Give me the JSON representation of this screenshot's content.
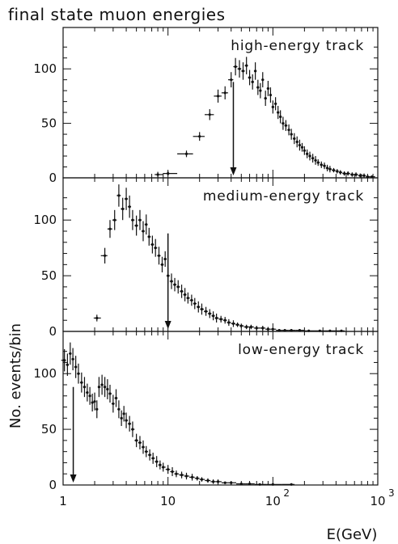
{
  "chart_data": {
    "type": "scatter",
    "title": "final state muon energies",
    "xlabel": "E(GeV)",
    "ylabel": "No. events/bin",
    "x_scale": "log",
    "xlim": [
      1,
      1000
    ],
    "x_ticks": [
      {
        "value": 1,
        "base": "1",
        "exp": ""
      },
      {
        "value": 10,
        "base": "10",
        "exp": ""
      },
      {
        "value": 100,
        "base": "10",
        "exp": "2"
      },
      {
        "value": 1000,
        "base": "10",
        "exp": "3"
      }
    ],
    "panels": [
      {
        "name": "high-energy track",
        "ylim": [
          0,
          135
        ],
        "y_ticks": [
          0,
          50,
          100
        ],
        "arrow_x": 42,
        "points": [
          [
            8,
            3,
            2.5
          ],
          [
            10,
            4,
            2
          ],
          [
            15,
            22,
            3
          ],
          [
            20,
            38,
            4
          ],
          [
            25,
            58,
            5
          ],
          [
            30,
            75,
            6
          ],
          [
            35,
            78,
            6
          ],
          [
            40,
            90,
            7
          ],
          [
            44,
            102,
            8
          ],
          [
            48,
            100,
            8
          ],
          [
            52,
            98,
            8
          ],
          [
            56,
            103,
            8
          ],
          [
            60,
            92,
            7
          ],
          [
            64,
            88,
            7
          ],
          [
            68,
            98,
            8
          ],
          [
            72,
            83,
            7
          ],
          [
            76,
            80,
            7
          ],
          [
            80,
            90,
            7
          ],
          [
            85,
            73,
            7
          ],
          [
            90,
            82,
            7
          ],
          [
            95,
            76,
            7
          ],
          [
            100,
            65,
            6
          ],
          [
            106,
            68,
            6
          ],
          [
            112,
            60,
            6
          ],
          [
            118,
            56,
            6
          ],
          [
            125,
            50,
            6
          ],
          [
            133,
            48,
            5
          ],
          [
            142,
            44,
            5
          ],
          [
            150,
            40,
            5
          ],
          [
            160,
            36,
            5
          ],
          [
            170,
            33,
            5
          ],
          [
            180,
            30,
            5
          ],
          [
            190,
            28,
            4
          ],
          [
            200,
            25,
            4
          ],
          [
            212,
            22,
            4
          ],
          [
            225,
            20,
            4
          ],
          [
            240,
            18,
            4
          ],
          [
            255,
            16,
            4
          ],
          [
            270,
            14,
            3
          ],
          [
            290,
            12,
            3
          ],
          [
            310,
            11,
            3
          ],
          [
            330,
            9,
            3
          ],
          [
            350,
            8,
            3
          ],
          [
            380,
            7,
            2
          ],
          [
            410,
            6,
            2
          ],
          [
            440,
            5,
            2
          ],
          [
            480,
            4,
            2
          ],
          [
            520,
            4,
            2
          ],
          [
            570,
            3,
            2
          ],
          [
            620,
            3,
            2
          ],
          [
            680,
            2,
            2
          ],
          [
            740,
            2,
            2
          ],
          [
            800,
            1,
            1
          ],
          [
            880,
            1,
            1
          ]
        ]
      },
      {
        "name": "medium-energy track",
        "ylim": [
          0,
          135
        ],
        "y_ticks": [
          0,
          50,
          100
        ],
        "arrow_x": 10,
        "points": [
          [
            2.1,
            12,
            3
          ],
          [
            2.5,
            68,
            7
          ],
          [
            2.8,
            92,
            8
          ],
          [
            3.1,
            100,
            9
          ],
          [
            3.4,
            122,
            10
          ],
          [
            3.7,
            110,
            10
          ],
          [
            4.0,
            119,
            10
          ],
          [
            4.3,
            112,
            10
          ],
          [
            4.6,
            100,
            9
          ],
          [
            5.0,
            95,
            9
          ],
          [
            5.4,
            100,
            9
          ],
          [
            5.8,
            90,
            9
          ],
          [
            6.2,
            96,
            9
          ],
          [
            6.6,
            85,
            8
          ],
          [
            7.1,
            78,
            8
          ],
          [
            7.6,
            75,
            8
          ],
          [
            8.2,
            68,
            8
          ],
          [
            8.8,
            60,
            7
          ],
          [
            9.4,
            65,
            7
          ],
          [
            10,
            50,
            7
          ],
          [
            10.8,
            45,
            7
          ],
          [
            11.6,
            42,
            6
          ],
          [
            12.5,
            40,
            6
          ],
          [
            13.5,
            36,
            6
          ],
          [
            14.5,
            33,
            6
          ],
          [
            15.5,
            30,
            5
          ],
          [
            16.8,
            28,
            5
          ],
          [
            18,
            25,
            5
          ],
          [
            19.5,
            22,
            5
          ],
          [
            21,
            20,
            5
          ],
          [
            23,
            18,
            4
          ],
          [
            25,
            16,
            4
          ],
          [
            27,
            14,
            4
          ],
          [
            29,
            12,
            4
          ],
          [
            32,
            11,
            3
          ],
          [
            35,
            10,
            3
          ],
          [
            38,
            8,
            3
          ],
          [
            42,
            7,
            3
          ],
          [
            46,
            6,
            2
          ],
          [
            50,
            5,
            2
          ],
          [
            56,
            4,
            2
          ],
          [
            62,
            4,
            2
          ],
          [
            70,
            3,
            2
          ],
          [
            80,
            3,
            2
          ],
          [
            90,
            2,
            2
          ],
          [
            100,
            2,
            1
          ],
          [
            115,
            1,
            1
          ],
          [
            130,
            1,
            1
          ],
          [
            150,
            1,
            1
          ],
          [
            180,
            1,
            1
          ],
          [
            220,
            0.5,
            1
          ],
          [
            280,
            0.5,
            1
          ],
          [
            350,
            0.5,
            1
          ],
          [
            450,
            0.5,
            1
          ]
        ]
      },
      {
        "name": "low-energy track",
        "ylim": [
          0,
          135
        ],
        "y_ticks": [
          0,
          50,
          100
        ],
        "arrow_x": 1.25,
        "points": [
          [
            1.03,
            112,
            10
          ],
          [
            1.1,
            108,
            10
          ],
          [
            1.17,
            118,
            10
          ],
          [
            1.24,
            113,
            10
          ],
          [
            1.32,
            106,
            10
          ],
          [
            1.4,
            100,
            9
          ],
          [
            1.5,
            92,
            9
          ],
          [
            1.6,
            88,
            9
          ],
          [
            1.7,
            83,
            8
          ],
          [
            1.8,
            80,
            8
          ],
          [
            1.9,
            74,
            8
          ],
          [
            2.0,
            75,
            8
          ],
          [
            2.1,
            68,
            8
          ],
          [
            2.2,
            88,
            9
          ],
          [
            2.35,
            90,
            9
          ],
          [
            2.5,
            88,
            9
          ],
          [
            2.65,
            86,
            9
          ],
          [
            2.8,
            82,
            8
          ],
          [
            3.0,
            73,
            8
          ],
          [
            3.2,
            78,
            8
          ],
          [
            3.4,
            68,
            8
          ],
          [
            3.6,
            60,
            7
          ],
          [
            3.8,
            64,
            7
          ],
          [
            4.0,
            58,
            7
          ],
          [
            4.3,
            55,
            7
          ],
          [
            4.6,
            50,
            7
          ],
          [
            5.0,
            40,
            6
          ],
          [
            5.4,
            38,
            6
          ],
          [
            5.8,
            34,
            6
          ],
          [
            6.2,
            30,
            5
          ],
          [
            6.7,
            27,
            5
          ],
          [
            7.2,
            24,
            5
          ],
          [
            7.8,
            21,
            5
          ],
          [
            8.4,
            18,
            4
          ],
          [
            9.0,
            16,
            4
          ],
          [
            10,
            14,
            4
          ],
          [
            11,
            12,
            4
          ],
          [
            12,
            10,
            3
          ],
          [
            13.5,
            9,
            3
          ],
          [
            15,
            8,
            3
          ],
          [
            17,
            7,
            3
          ],
          [
            19,
            6,
            2
          ],
          [
            21,
            5,
            2
          ],
          [
            24,
            4,
            2
          ],
          [
            27,
            3,
            2
          ],
          [
            30,
            3,
            2
          ],
          [
            35,
            2,
            1
          ],
          [
            40,
            2,
            1
          ],
          [
            50,
            1,
            1
          ],
          [
            60,
            1,
            1
          ],
          [
            75,
            0.5,
            1
          ],
          [
            100,
            0.5,
            1
          ],
          [
            150,
            0.5,
            1
          ]
        ]
      }
    ]
  }
}
